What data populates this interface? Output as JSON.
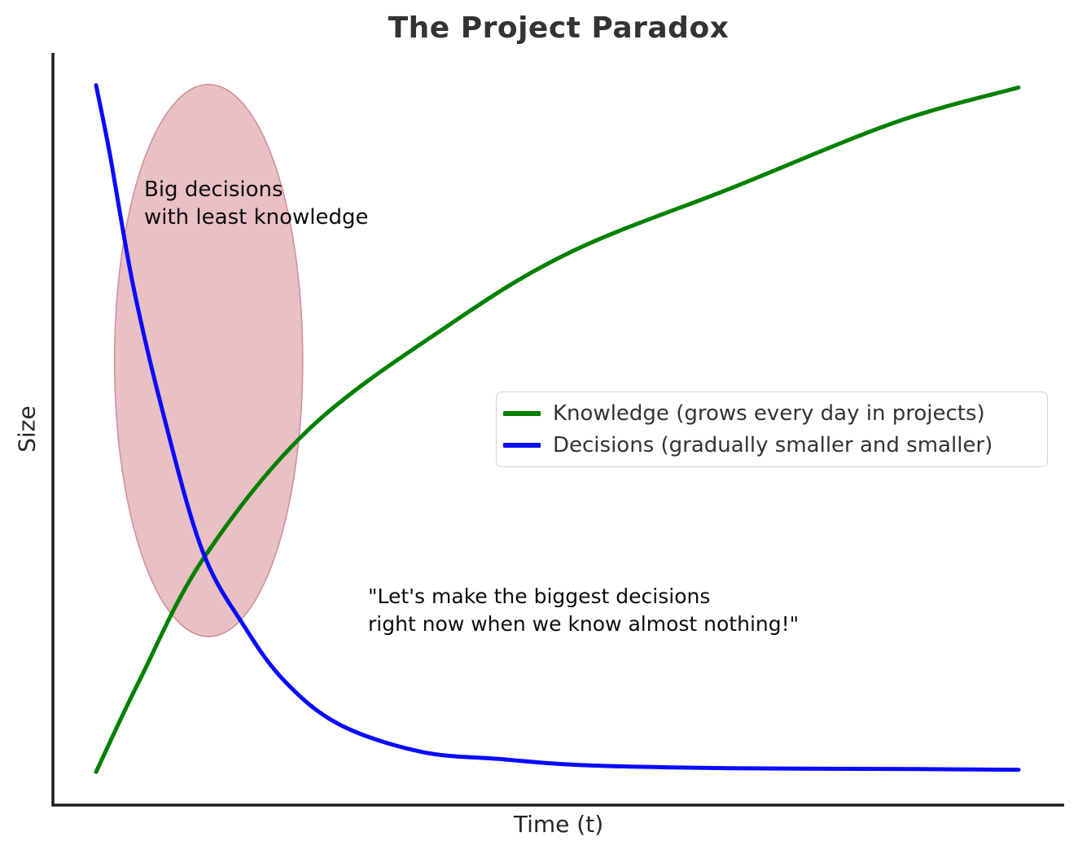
{
  "chart_data": {
    "type": "line",
    "title": "The Project Paradox",
    "xlabel": "Time (t)",
    "ylabel": "Size",
    "x_domain": [
      0,
      10
    ],
    "y_domain": [
      0,
      1
    ],
    "grid": false,
    "ticks": "none",
    "spines": {
      "shown": [
        "left",
        "bottom"
      ],
      "color": "#1c1c1c"
    },
    "legend_position": "center right",
    "series": [
      {
        "name": "Knowledge (grows every day in projects)",
        "color": "#008000",
        "shape": "logarithmic growth",
        "points": [
          [
            0,
            0.044
          ],
          [
            0.46,
            0.163
          ],
          [
            1.17,
            0.329
          ],
          [
            2.31,
            0.5
          ],
          [
            3.81,
            0.637
          ],
          [
            5.14,
            0.735
          ],
          [
            6.9,
            0.821
          ],
          [
            8.67,
            0.908
          ],
          [
            10,
            0.954
          ]
        ]
      },
      {
        "name": "Decisions (gradually smaller and smaller)",
        "color": "#0a0aff",
        "shape": "exponential decay",
        "points": [
          [
            0,
            0.957
          ],
          [
            0.15,
            0.865
          ],
          [
            0.4,
            0.692
          ],
          [
            0.72,
            0.524
          ],
          [
            1.15,
            0.339
          ],
          [
            1.61,
            0.237
          ],
          [
            2.05,
            0.164
          ],
          [
            2.64,
            0.107
          ],
          [
            3.52,
            0.071
          ],
          [
            4.4,
            0.061
          ],
          [
            5.29,
            0.053
          ],
          [
            6.9,
            0.049
          ],
          [
            8.67,
            0.048
          ],
          [
            10,
            0.047
          ]
        ]
      }
    ],
    "annotations": {
      "big_decisions": "Big decisions\nwith least knowledge",
      "quote": "\"Let's make the biggest decisions\nright now when we know almost nothing!\"",
      "ellipse": {
        "cx": 1.22,
        "cy": 0.591,
        "rx": 1.02,
        "ry": 0.367,
        "fill": "#e9c0c4",
        "stroke": "#ce9298"
      }
    }
  }
}
